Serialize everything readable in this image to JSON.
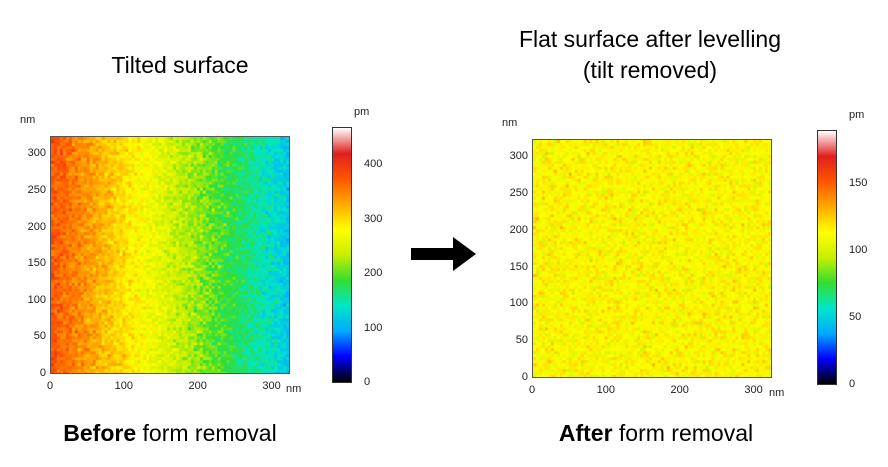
{
  "left": {
    "title": "Tilted surface",
    "caption_bold": "Before",
    "caption_rest": " form removal",
    "unit_y": "nm",
    "unit_x": "nm",
    "unit_colorbar": "pm",
    "y_ticks": [
      "300",
      "250",
      "200",
      "150",
      "100",
      "50",
      "0"
    ],
    "x_ticks": [
      "0",
      "100",
      "200",
      "300"
    ],
    "colorbar_ticks": [
      "400",
      "300",
      "200",
      "100",
      "0"
    ],
    "colorbar_range": [
      0,
      470
    ]
  },
  "right": {
    "title_line1": "Flat surface after levelling",
    "title_line2": "(tilt removed)",
    "caption_bold": "After",
    "caption_rest": " form removal",
    "unit_y": "nm",
    "unit_x": "nm",
    "unit_colorbar": "pm",
    "y_ticks": [
      "300",
      "250",
      "200",
      "150",
      "100",
      "50",
      "0"
    ],
    "x_ticks": [
      "0",
      "100",
      "200",
      "300"
    ],
    "colorbar_ticks": [
      "150",
      "100",
      "50",
      "0"
    ],
    "colorbar_range": [
      0,
      190
    ]
  },
  "arrow": {
    "color": "#000000"
  },
  "colormap": [
    "#000000",
    "#0000ff",
    "#00aaff",
    "#00e6c8",
    "#33dd33",
    "#c8ee00",
    "#ffff00",
    "#ffaa00",
    "#ff5500",
    "#e02020",
    "#ffffff"
  ]
}
